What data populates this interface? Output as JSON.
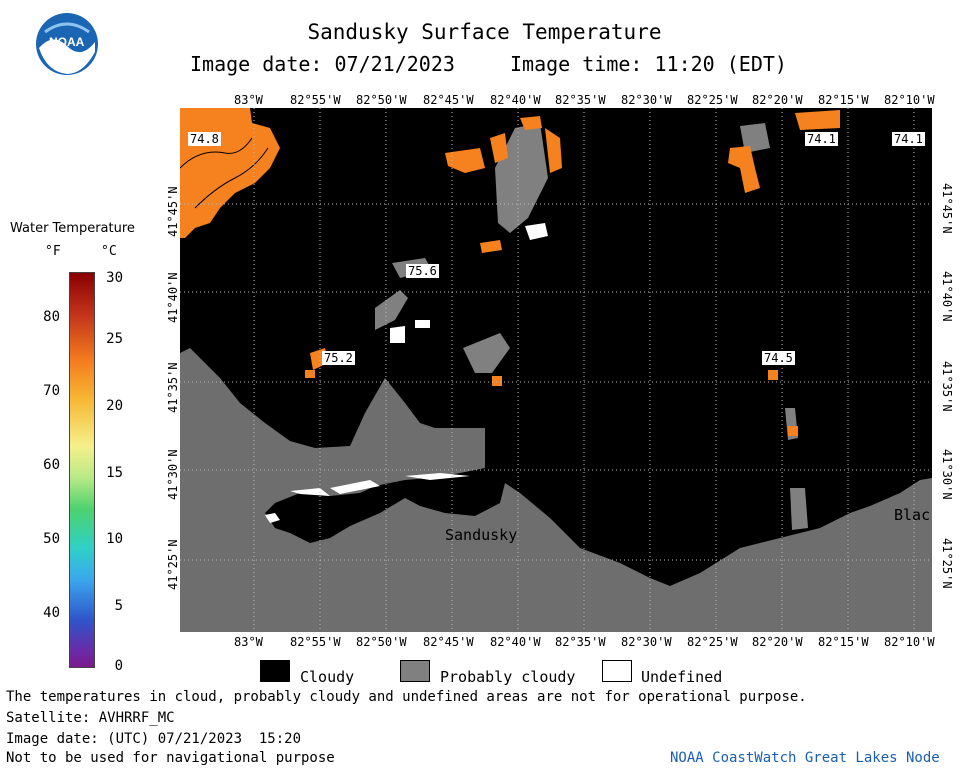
{
  "header": {
    "title": "Sandusky Surface Temperature",
    "image_date": "Image date: 07/21/2023",
    "image_time": "Image time: 11:20 (EDT)"
  },
  "logo_text": "NOAA",
  "map": {
    "lon_labels": [
      "83°W",
      "82°55'W",
      "82°50'W",
      "82°45'W",
      "82°40'W",
      "82°35'W",
      "82°30'W",
      "82°25'W",
      "82°20'W",
      "82°15'W",
      "82°10'W"
    ],
    "lat_labels": [
      "41°45'N",
      "41°40'N",
      "41°35'N",
      "41°30'N",
      "41°25'N"
    ],
    "place_labels": {
      "sandusky": "Sandusky",
      "black": "Blac"
    },
    "temp_labels": [
      "74.8",
      "74.1",
      "74.1",
      "75.6",
      "75.2",
      "74.5"
    ],
    "colors": {
      "water_orange": "#f5821e",
      "cloudy": "#000000",
      "probably_cloudy": "#808080",
      "land": "#6e6e6e",
      "undefined": "#ffffff"
    }
  },
  "colorbar": {
    "title": "Water Temperature",
    "unit_f": "°F",
    "unit_c": "°C",
    "f_ticks": [
      "80",
      "70",
      "60",
      "50",
      "40"
    ],
    "c_ticks": [
      "30",
      "25",
      "20",
      "15",
      "10",
      "5",
      "0"
    ]
  },
  "legend": {
    "cloudy": "Cloudy",
    "probably_cloudy": "Probably cloudy",
    "undefined": "Undefined"
  },
  "footer": {
    "disclaimer": "The temperatures in cloud, probably cloudy and undefined areas are not for operational purpose.",
    "satellite": "Satellite: AVHRRF_MC",
    "image_date_utc": "Image date: (UTC) 07/21/2023  15:20",
    "nav_warning": "Not to be used for navigational purpose",
    "credit": "NOAA CoastWatch Great Lakes Node"
  }
}
